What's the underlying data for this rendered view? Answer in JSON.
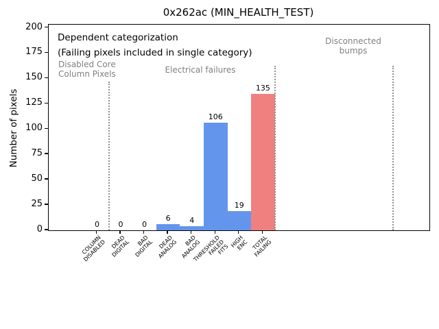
{
  "chart_data": {
    "type": "bar",
    "title": "0x262ac (MIN_HEALTH_TEST)",
    "ylabel": "Number of pixels",
    "ylim": [
      0,
      200
    ],
    "yticks": [
      0,
      25,
      50,
      75,
      100,
      125,
      150,
      175,
      200
    ],
    "grid": false,
    "legend_position": "none",
    "categories": [
      "COLUMN\nDISABLED",
      "DEAD\nDIGITAL",
      "BAD\nDIGITAL",
      "DEAD\nANALOG",
      "BAD\nANALOG",
      "THRESHOLD\nFAILED\nFITS",
      "HIGH\nENC",
      "TOTAL\nFAILING"
    ],
    "values": [
      0,
      0,
      0,
      6,
      4,
      106,
      19,
      135
    ],
    "bar_value_labels": [
      "0",
      "0",
      "0",
      "6",
      "4",
      "106",
      "19",
      "135"
    ],
    "bar_color_keys": [
      "default",
      "default",
      "default",
      "default",
      "default",
      "default",
      "default",
      "total"
    ],
    "colors": {
      "default_bar": "#6495ED",
      "total_bar": "#F08080",
      "section_text": "#808080",
      "separator_line": "#909090",
      "axis": "#000000"
    },
    "xlim_category_units": [
      -2.05,
      14.0
    ],
    "separators_category_units": [
      0.5,
      7.5,
      12.5
    ],
    "annotations": [
      {
        "id": "dependent-categorization",
        "text": "Dependent categorization",
        "emphasis": "primary"
      },
      {
        "id": "failing-note",
        "text": "(Failing pixels included in single category)",
        "emphasis": "primary"
      },
      {
        "id": "disabled-core-label",
        "text": "Disabled Core\nColumn Pixels",
        "emphasis": "section"
      },
      {
        "id": "electrical-failures-label",
        "text": "Electrical failures",
        "emphasis": "section"
      },
      {
        "id": "disconnected-bumps-label",
        "text": "Disconnected\nbumps",
        "emphasis": "section"
      }
    ]
  }
}
